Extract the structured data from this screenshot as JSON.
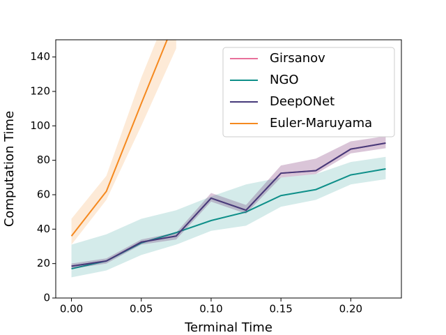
{
  "chart_data": {
    "type": "line",
    "xlabel": "Terminal Time",
    "ylabel": "Computation Time",
    "x": [
      0,
      0.025,
      0.05,
      0.075,
      0.1,
      0.125,
      0.15,
      0.175,
      0.2,
      0.225
    ],
    "xlim": [
      -0.01125,
      0.23625
    ],
    "ylim": [
      0,
      150
    ],
    "xticks": [
      {
        "value": 0,
        "label": "0.00"
      },
      {
        "value": 0.05,
        "label": "0.05"
      },
      {
        "value": 0.1,
        "label": "0.10"
      },
      {
        "value": 0.15,
        "label": "0.15"
      },
      {
        "value": 0.2,
        "label": "0.20"
      }
    ],
    "yticks": [
      0,
      20,
      40,
      60,
      80,
      100,
      120,
      140
    ],
    "legend": "upper right",
    "series": [
      {
        "name": "Girsanov",
        "color": "#e8709a",
        "values": [
          18.5,
          21.5,
          32.5,
          36,
          58,
          51,
          72.5,
          74,
          86.5,
          90
        ],
        "lower": [
          17,
          20,
          31,
          34,
          56,
          49,
          70,
          72,
          84,
          87
        ],
        "upper": [
          20,
          23,
          34,
          38,
          61,
          54,
          77,
          81,
          91,
          94
        ]
      },
      {
        "name": "NGO",
        "color": "#0e8f89",
        "values": [
          17,
          21.5,
          32,
          38,
          45,
          50,
          59.5,
          63,
          71.5,
          75
        ],
        "lower": [
          12,
          16,
          25,
          31,
          39,
          42,
          53,
          57,
          66,
          69
        ],
        "upper": [
          31,
          37,
          46,
          51,
          59,
          66,
          70,
          72,
          79,
          82
        ]
      },
      {
        "name": "DeepONet",
        "color": "#463a7a",
        "values": [
          18.5,
          21.5,
          32.5,
          36,
          58,
          51,
          72.5,
          74,
          86.5,
          90
        ],
        "lower": [
          17,
          20,
          31,
          34,
          56,
          49,
          70,
          72,
          84,
          87
        ],
        "upper": [
          20,
          23,
          34,
          38,
          61,
          54,
          77,
          81,
          91,
          94
        ]
      },
      {
        "name": "Euler-Maruyama",
        "color": "#f5891f",
        "values": [
          36,
          62,
          113,
          163,
          null,
          null,
          null,
          null,
          null,
          null
        ],
        "lower": [
          31,
          57,
          100,
          145,
          null,
          null,
          null,
          null,
          null,
          null
        ],
        "upper": [
          46,
          71,
          128,
          178,
          null,
          null,
          null,
          null,
          null,
          null
        ]
      }
    ]
  }
}
